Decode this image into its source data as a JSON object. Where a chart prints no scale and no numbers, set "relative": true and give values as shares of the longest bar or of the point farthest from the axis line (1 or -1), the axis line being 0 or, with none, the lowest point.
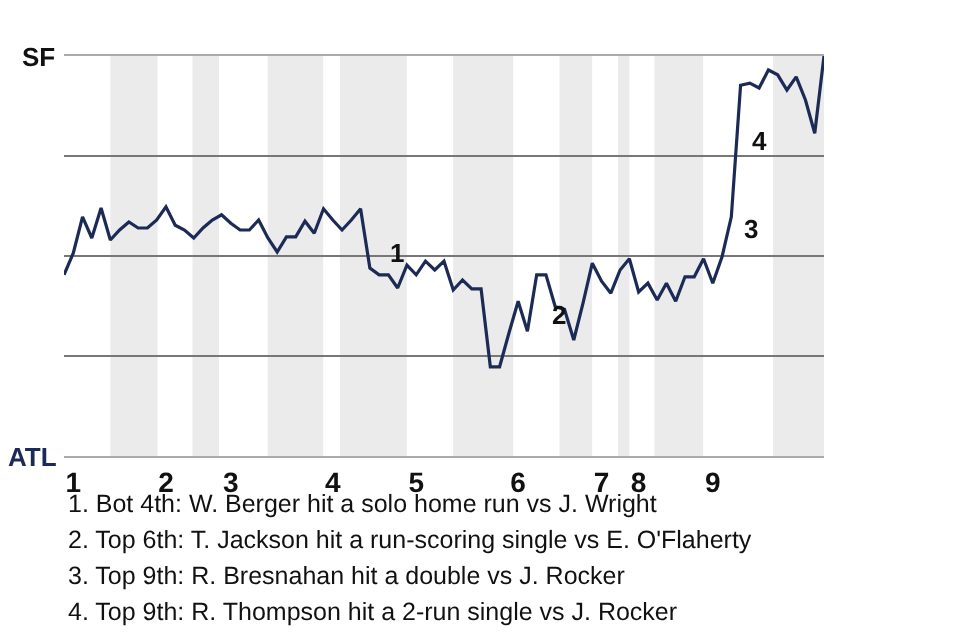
{
  "chart_data": {
    "type": "line",
    "relative": true,
    "categories": [
      null,
      "1",
      null,
      null,
      null,
      null,
      null,
      null,
      null,
      null,
      null,
      "2",
      null,
      null,
      null,
      null,
      null,
      null,
      "3",
      null,
      null,
      null,
      null,
      null,
      null,
      null,
      null,
      null,
      null,
      "4",
      null,
      null,
      null,
      null,
      null,
      null,
      null,
      null,
      "5",
      null,
      null,
      null,
      null,
      null,
      null,
      null,
      null,
      null,
      null,
      "6",
      null,
      null,
      null,
      null,
      null,
      null,
      null,
      null,
      "7",
      null,
      null,
      null,
      "8",
      null,
      null,
      null,
      null,
      null,
      null,
      null,
      "9",
      null,
      null,
      null,
      null,
      null,
      null,
      null,
      null,
      null,
      null,
      null,
      null
    ],
    "series": [
      {
        "color": "#1c2a56",
        "values": [
          0.453,
          0.507,
          0.598,
          0.545,
          0.62,
          0.54,
          0.565,
          0.585,
          0.57,
          0.57,
          0.59,
          0.623,
          0.577,
          0.565,
          0.545,
          0.57,
          0.59,
          0.603,
          0.582,
          0.565,
          0.565,
          0.59,
          0.545,
          0.51,
          0.548,
          0.548,
          0.587,
          0.557,
          0.618,
          0.59,
          0.565,
          0.59,
          0.618,
          0.47,
          0.453,
          0.453,
          0.42,
          0.477,
          0.453,
          0.487,
          0.465,
          0.487,
          0.415,
          0.44,
          0.418,
          0.418,
          0.223,
          0.223,
          0.307,
          0.387,
          0.312,
          0.453,
          0.453,
          0.373,
          0.367,
          0.29,
          0.382,
          0.482,
          0.437,
          0.407,
          0.465,
          0.493,
          0.41,
          0.432,
          0.39,
          0.432,
          0.387,
          0.448,
          0.448,
          0.493,
          0.432,
          0.498,
          0.598,
          0.927,
          0.932,
          0.92,
          0.965,
          0.953,
          0.915,
          0.948,
          0.89,
          0.807,
          1
        ]
      }
    ],
    "grid": "y",
    "annotations": [
      "SF",
      "ATL",
      "1",
      "2",
      "3",
      "4",
      "1. Bot 4th: W. Berger hit a solo home run vs J. Wright",
      "2. Top 6th: T. Jackson hit a run-scoring single vs E. O'Flaherty",
      "3. Top 9th: R. Bresnahan hit a double vs J. Rocker",
      "4. Top 9th: R. Thompson hit a 2-run single vs J. Rocker"
    ],
    "marker": "none",
    "line_style": "solid"
  }
}
